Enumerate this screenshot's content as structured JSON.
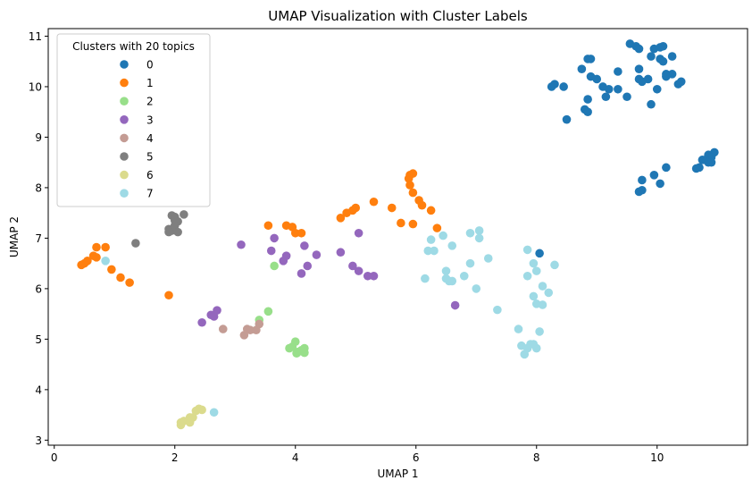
{
  "chart_data": {
    "type": "scatter",
    "title": "UMAP Visualization with Cluster Labels",
    "xlabel": "UMAP 1",
    "ylabel": "UMAP 2",
    "xlim": [
      -0.1,
      11.5
    ],
    "ylim": [
      2.9,
      11.15
    ],
    "xticks": [
      0,
      2,
      4,
      6,
      8,
      10
    ],
    "yticks": [
      3,
      4,
      5,
      6,
      7,
      8,
      9,
      10,
      11
    ],
    "grid": false,
    "legend": {
      "title": "Clusters with 20 topics",
      "placement": "top-left"
    },
    "series": [
      {
        "name": "0",
        "color": "#1f77b4",
        "points": [
          [
            9.55,
            10.85
          ],
          [
            9.65,
            10.8
          ],
          [
            9.7,
            10.75
          ],
          [
            9.95,
            10.75
          ],
          [
            10.05,
            10.78
          ],
          [
            10.1,
            10.8
          ],
          [
            9.9,
            10.6
          ],
          [
            10.05,
            10.55
          ],
          [
            10.1,
            10.5
          ],
          [
            10.25,
            10.6
          ],
          [
            8.85,
            10.55
          ],
          [
            8.9,
            10.55
          ],
          [
            8.75,
            10.35
          ],
          [
            9.7,
            10.35
          ],
          [
            9.85,
            10.15
          ],
          [
            10.15,
            10.25
          ],
          [
            10.25,
            10.25
          ],
          [
            10.35,
            10.05
          ],
          [
            10.4,
            10.1
          ],
          [
            9.35,
            10.3
          ],
          [
            8.9,
            10.2
          ],
          [
            9.0,
            10.15
          ],
          [
            9.7,
            10.15
          ],
          [
            9.75,
            10.1
          ],
          [
            10.15,
            10.2
          ],
          [
            10.0,
            9.95
          ],
          [
            8.25,
            10.0
          ],
          [
            8.3,
            10.05
          ],
          [
            8.45,
            10.0
          ],
          [
            9.1,
            10.0
          ],
          [
            9.2,
            9.95
          ],
          [
            9.35,
            9.95
          ],
          [
            9.15,
            9.8
          ],
          [
            9.5,
            9.8
          ],
          [
            8.85,
            9.75
          ],
          [
            9.9,
            9.65
          ],
          [
            8.8,
            9.55
          ],
          [
            8.85,
            9.5
          ],
          [
            8.5,
            9.35
          ],
          [
            10.95,
            8.7
          ],
          [
            10.85,
            8.65
          ],
          [
            10.9,
            8.6
          ],
          [
            10.8,
            8.55
          ],
          [
            10.75,
            8.55
          ],
          [
            10.85,
            8.5
          ],
          [
            10.9,
            8.5
          ],
          [
            10.7,
            8.4
          ],
          [
            10.65,
            8.38
          ],
          [
            10.15,
            8.4
          ],
          [
            9.95,
            8.25
          ],
          [
            9.75,
            8.15
          ],
          [
            10.05,
            8.08
          ],
          [
            9.75,
            7.95
          ],
          [
            9.7,
            7.92
          ],
          [
            8.05,
            6.7
          ]
        ]
      },
      {
        "name": "1",
        "color": "#ff7f0e",
        "points": [
          [
            5.9,
            8.25
          ],
          [
            5.95,
            8.28
          ],
          [
            5.88,
            8.18
          ],
          [
            5.9,
            8.05
          ],
          [
            5.95,
            7.9
          ],
          [
            6.05,
            7.75
          ],
          [
            6.1,
            7.65
          ],
          [
            6.25,
            7.55
          ],
          [
            5.3,
            7.72
          ],
          [
            5.0,
            7.6
          ],
          [
            4.95,
            7.55
          ],
          [
            4.85,
            7.5
          ],
          [
            5.6,
            7.6
          ],
          [
            4.75,
            7.4
          ],
          [
            5.75,
            7.3
          ],
          [
            5.95,
            7.28
          ],
          [
            6.35,
            7.2
          ],
          [
            3.55,
            7.25
          ],
          [
            3.85,
            7.25
          ],
          [
            3.95,
            7.22
          ],
          [
            4.0,
            7.1
          ],
          [
            4.1,
            7.1
          ],
          [
            0.7,
            6.82
          ],
          [
            0.85,
            6.82
          ],
          [
            0.65,
            6.65
          ],
          [
            0.7,
            6.62
          ],
          [
            0.55,
            6.55
          ],
          [
            0.5,
            6.5
          ],
          [
            0.45,
            6.47
          ],
          [
            0.95,
            6.38
          ],
          [
            1.1,
            6.22
          ],
          [
            1.25,
            6.12
          ],
          [
            1.9,
            5.87
          ]
        ]
      },
      {
        "name": "2",
        "color": "#98df8a",
        "points": [
          [
            3.65,
            6.45
          ],
          [
            3.55,
            5.55
          ],
          [
            3.4,
            5.38
          ],
          [
            4.0,
            4.95
          ],
          [
            3.95,
            4.85
          ],
          [
            3.9,
            4.82
          ],
          [
            4.15,
            4.82
          ],
          [
            4.05,
            4.75
          ],
          [
            4.1,
            4.78
          ],
          [
            4.15,
            4.73
          ],
          [
            4.02,
            4.72
          ]
        ]
      },
      {
        "name": "3",
        "color": "#9467bd",
        "points": [
          [
            3.1,
            6.87
          ],
          [
            3.65,
            7.0
          ],
          [
            3.6,
            6.75
          ],
          [
            3.85,
            6.65
          ],
          [
            3.8,
            6.55
          ],
          [
            4.15,
            6.85
          ],
          [
            4.35,
            6.67
          ],
          [
            4.1,
            6.3
          ],
          [
            4.2,
            6.45
          ],
          [
            4.75,
            6.72
          ],
          [
            5.05,
            7.1
          ],
          [
            4.95,
            6.45
          ],
          [
            5.05,
            6.35
          ],
          [
            5.2,
            6.25
          ],
          [
            5.3,
            6.25
          ],
          [
            6.65,
            5.67
          ],
          [
            2.7,
            5.57
          ],
          [
            2.6,
            5.48
          ],
          [
            2.65,
            5.45
          ],
          [
            2.45,
            5.33
          ]
        ]
      },
      {
        "name": "4",
        "color": "#c49c94",
        "points": [
          [
            2.8,
            5.2
          ],
          [
            3.2,
            5.2
          ],
          [
            3.25,
            5.18
          ],
          [
            3.35,
            5.18
          ],
          [
            3.4,
            5.3
          ],
          [
            3.15,
            5.08
          ]
        ]
      },
      {
        "name": "5",
        "color": "#7f7f7f",
        "points": [
          [
            1.35,
            6.9
          ],
          [
            1.95,
            7.45
          ],
          [
            2.0,
            7.42
          ],
          [
            2.15,
            7.47
          ],
          [
            2.0,
            7.35
          ],
          [
            2.05,
            7.33
          ],
          [
            2.0,
            7.25
          ],
          [
            1.9,
            7.18
          ],
          [
            1.95,
            7.15
          ],
          [
            2.05,
            7.12
          ],
          [
            1.9,
            7.12
          ]
        ]
      },
      {
        "name": "6",
        "color": "#dbdb8d",
        "points": [
          [
            2.4,
            3.62
          ],
          [
            2.45,
            3.6
          ],
          [
            2.35,
            3.58
          ],
          [
            2.25,
            3.45
          ],
          [
            2.3,
            3.45
          ],
          [
            2.15,
            3.38
          ],
          [
            2.1,
            3.35
          ],
          [
            2.25,
            3.35
          ],
          [
            2.1,
            3.3
          ]
        ]
      },
      {
        "name": "7",
        "color": "#9edae5",
        "points": [
          [
            0.85,
            6.55
          ],
          [
            2.65,
            3.55
          ],
          [
            7.05,
            7.15
          ],
          [
            6.45,
            7.05
          ],
          [
            6.9,
            7.1
          ],
          [
            7.05,
            7.0
          ],
          [
            6.25,
            6.97
          ],
          [
            6.2,
            6.75
          ],
          [
            6.3,
            6.75
          ],
          [
            6.6,
            6.85
          ],
          [
            7.85,
            6.77
          ],
          [
            7.2,
            6.6
          ],
          [
            6.9,
            6.5
          ],
          [
            7.95,
            6.5
          ],
          [
            8.3,
            6.47
          ],
          [
            6.5,
            6.35
          ],
          [
            6.8,
            6.25
          ],
          [
            7.85,
            6.25
          ],
          [
            8.0,
            6.35
          ],
          [
            6.15,
            6.2
          ],
          [
            6.5,
            6.2
          ],
          [
            6.55,
            6.15
          ],
          [
            6.6,
            6.15
          ],
          [
            8.1,
            6.05
          ],
          [
            7.0,
            6.0
          ],
          [
            7.95,
            5.85
          ],
          [
            8.2,
            5.92
          ],
          [
            8.0,
            5.7
          ],
          [
            8.1,
            5.68
          ],
          [
            7.35,
            5.58
          ],
          [
            7.7,
            5.2
          ],
          [
            8.05,
            5.15
          ],
          [
            7.75,
            4.87
          ],
          [
            7.9,
            4.9
          ],
          [
            7.85,
            4.82
          ],
          [
            8.0,
            4.82
          ],
          [
            7.95,
            4.9
          ],
          [
            7.8,
            4.7
          ]
        ]
      }
    ]
  }
}
